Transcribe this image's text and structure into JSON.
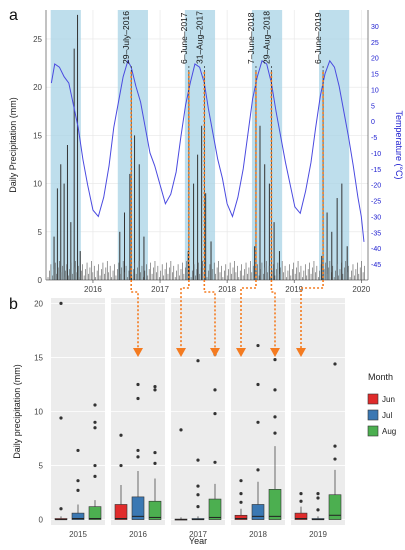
{
  "figure": {
    "panel_a_label": "a",
    "panel_b_label": "b"
  },
  "chart_data": [
    {
      "panel": "a",
      "type": "line",
      "ylabel": "Daily Precipitation (mm)",
      "y2label": "Temperature (°C)",
      "ylim": [
        0,
        28
      ],
      "y2lim": [
        -50,
        35
      ],
      "xlim": [
        2015.3,
        2020.1
      ],
      "y_ticks": [
        0,
        5,
        10,
        15,
        20,
        25
      ],
      "y2_ticks": [
        30,
        25,
        20,
        15,
        10,
        5,
        0,
        -5,
        -10,
        -15,
        -20,
        -25,
        -30,
        -35,
        -40,
        -45
      ],
      "x_ticks": [
        {
          "x": 2016,
          "label": "2016"
        },
        {
          "x": 2017,
          "label": "2017"
        },
        {
          "x": 2018,
          "label": "2018"
        },
        {
          "x": 2019,
          "label": "2019"
        },
        {
          "x": 2020,
          "label": "2020"
        }
      ],
      "summer_bands": [
        [
          2015.37,
          2015.82
        ],
        [
          2016.37,
          2016.82
        ],
        [
          2017.37,
          2017.82
        ],
        [
          2018.37,
          2018.82
        ],
        [
          2019.37,
          2019.82
        ]
      ],
      "annotations": [
        {
          "x": 2016.57,
          "label": "29–July–2016"
        },
        {
          "x": 2017.43,
          "label": "6–June–2017"
        },
        {
          "x": 2017.66,
          "label": "31–Aug–2017"
        },
        {
          "x": 2018.43,
          "label": "7–June–2018"
        },
        {
          "x": 2018.66,
          "label": "29–Aug–2018"
        },
        {
          "x": 2019.43,
          "label": "6–June–2019"
        }
      ],
      "precipitation_spikes": [
        {
          "x": 2015.42,
          "y": 4.5
        },
        {
          "x": 2015.47,
          "y": 9.5
        },
        {
          "x": 2015.52,
          "y": 12.0
        },
        {
          "x": 2015.57,
          "y": 10.0
        },
        {
          "x": 2015.62,
          "y": 14.0
        },
        {
          "x": 2015.67,
          "y": 6.0
        },
        {
          "x": 2015.72,
          "y": 24.0
        },
        {
          "x": 2015.77,
          "y": 27.5
        },
        {
          "x": 2015.81,
          "y": 3.0
        },
        {
          "x": 2016.4,
          "y": 5.0
        },
        {
          "x": 2016.47,
          "y": 7.0
        },
        {
          "x": 2016.55,
          "y": 11.0
        },
        {
          "x": 2016.62,
          "y": 15.0
        },
        {
          "x": 2016.69,
          "y": 12.0
        },
        {
          "x": 2016.76,
          "y": 4.5
        },
        {
          "x": 2017.42,
          "y": 3.0
        },
        {
          "x": 2017.5,
          "y": 10.0
        },
        {
          "x": 2017.56,
          "y": 13.0
        },
        {
          "x": 2017.62,
          "y": 16.0
        },
        {
          "x": 2017.68,
          "y": 9.0
        },
        {
          "x": 2017.76,
          "y": 4.0
        },
        {
          "x": 2018.41,
          "y": 3.5
        },
        {
          "x": 2018.49,
          "y": 16.0
        },
        {
          "x": 2018.56,
          "y": 12.0
        },
        {
          "x": 2018.63,
          "y": 10.0
        },
        {
          "x": 2018.7,
          "y": 6.0
        },
        {
          "x": 2018.78,
          "y": 3.0
        },
        {
          "x": 2019.41,
          "y": 2.5
        },
        {
          "x": 2019.49,
          "y": 7.0
        },
        {
          "x": 2019.56,
          "y": 5.0
        },
        {
          "x": 2019.64,
          "y": 8.5
        },
        {
          "x": 2019.71,
          "y": 10.0
        },
        {
          "x": 2019.79,
          "y": 3.5
        }
      ],
      "temperature_series": [
        {
          "x": 2015.38,
          "y": 12
        },
        {
          "x": 2015.43,
          "y": 18
        },
        {
          "x": 2015.5,
          "y": 17
        },
        {
          "x": 2015.57,
          "y": 14
        },
        {
          "x": 2015.64,
          "y": 12
        },
        {
          "x": 2015.71,
          "y": 5
        },
        {
          "x": 2015.78,
          "y": -2
        },
        {
          "x": 2015.85,
          "y": -12
        },
        {
          "x": 2015.92,
          "y": -20
        },
        {
          "x": 2016.0,
          "y": -28
        },
        {
          "x": 2016.08,
          "y": -30
        },
        {
          "x": 2016.16,
          "y": -24
        },
        {
          "x": 2016.24,
          "y": -14
        },
        {
          "x": 2016.31,
          "y": -2
        },
        {
          "x": 2016.38,
          "y": 6
        },
        {
          "x": 2016.45,
          "y": 14
        },
        {
          "x": 2016.52,
          "y": 19
        },
        {
          "x": 2016.57,
          "y": 17
        },
        {
          "x": 2016.64,
          "y": 11
        },
        {
          "x": 2016.71,
          "y": 6
        },
        {
          "x": 2016.78,
          "y": -2
        },
        {
          "x": 2016.85,
          "y": -10
        },
        {
          "x": 2016.92,
          "y": -14
        },
        {
          "x": 2017.0,
          "y": -20
        },
        {
          "x": 2017.08,
          "y": -26
        },
        {
          "x": 2017.16,
          "y": -23
        },
        {
          "x": 2017.24,
          "y": -16
        },
        {
          "x": 2017.31,
          "y": -5
        },
        {
          "x": 2017.38,
          "y": 5
        },
        {
          "x": 2017.45,
          "y": 12
        },
        {
          "x": 2017.52,
          "y": 18
        },
        {
          "x": 2017.59,
          "y": 17
        },
        {
          "x": 2017.66,
          "y": 12
        },
        {
          "x": 2017.72,
          "y": 4
        },
        {
          "x": 2017.79,
          "y": -4
        },
        {
          "x": 2017.86,
          "y": -12
        },
        {
          "x": 2017.93,
          "y": -18
        },
        {
          "x": 2018.0,
          "y": -26
        },
        {
          "x": 2018.08,
          "y": -30
        },
        {
          "x": 2018.16,
          "y": -24
        },
        {
          "x": 2018.24,
          "y": -15
        },
        {
          "x": 2018.31,
          "y": -4
        },
        {
          "x": 2018.38,
          "y": 7
        },
        {
          "x": 2018.45,
          "y": 14
        },
        {
          "x": 2018.52,
          "y": 19
        },
        {
          "x": 2018.59,
          "y": 18
        },
        {
          "x": 2018.66,
          "y": 12
        },
        {
          "x": 2018.73,
          "y": 3
        },
        {
          "x": 2018.8,
          "y": -5
        },
        {
          "x": 2018.87,
          "y": -13
        },
        {
          "x": 2018.94,
          "y": -20
        },
        {
          "x": 2019.01,
          "y": -27
        },
        {
          "x": 2019.09,
          "y": -29
        },
        {
          "x": 2019.17,
          "y": -22
        },
        {
          "x": 2019.25,
          "y": -13
        },
        {
          "x": 2019.32,
          "y": -2
        },
        {
          "x": 2019.39,
          "y": 8
        },
        {
          "x": 2019.46,
          "y": 15
        },
        {
          "x": 2019.53,
          "y": 19
        },
        {
          "x": 2019.6,
          "y": 17
        },
        {
          "x": 2019.67,
          "y": 11
        },
        {
          "x": 2019.74,
          "y": 3
        },
        {
          "x": 2019.81,
          "y": -5
        },
        {
          "x": 2019.88,
          "y": -14
        },
        {
          "x": 2019.95,
          "y": -24
        },
        {
          "x": 2020.0,
          "y": -30
        },
        {
          "x": 2020.04,
          "y": -38
        }
      ]
    },
    {
      "panel": "b",
      "type": "box",
      "xlabel": "Year",
      "ylabel": "Daily precipitation (mm)",
      "ylim": [
        -0.5,
        20.5
      ],
      "y_ticks": [
        0,
        5,
        10,
        15,
        20
      ],
      "categories": [
        "2015",
        "2016",
        "2017",
        "2018",
        "2019"
      ],
      "legend": {
        "title": "Month",
        "entries": [
          "Jun",
          "Jul",
          "Aug"
        ],
        "colors": [
          "#e02b2b",
          "#3b78b3",
          "#4caf50"
        ]
      },
      "series": [
        {
          "name": "Jun",
          "color": "#e02b2b",
          "boxes": [
            {
              "q1": 0,
              "median": 0,
              "q3": 0.1,
              "whisker_low": 0,
              "whisker_high": 0.3,
              "outliers": [
                1.0,
                9.4,
                20.0
              ]
            },
            {
              "q1": 0,
              "median": 0.1,
              "q3": 1.4,
              "whisker_low": 0,
              "whisker_high": 3.2,
              "outliers": [
                5.0,
                7.8
              ]
            },
            {
              "q1": 0,
              "median": 0,
              "q3": 0.05,
              "whisker_low": 0,
              "whisker_high": 0.2,
              "outliers": [
                8.3
              ]
            },
            {
              "q1": 0,
              "median": 0.1,
              "q3": 0.4,
              "whisker_low": 0,
              "whisker_high": 1.0,
              "outliers": [
                1.6,
                2.4,
                3.6
              ]
            },
            {
              "q1": 0,
              "median": 0.1,
              "q3": 0.6,
              "whisker_low": 0,
              "whisker_high": 1.2,
              "outliers": [
                1.7,
                2.4
              ]
            }
          ]
        },
        {
          "name": "Jul",
          "color": "#3b78b3",
          "boxes": [
            {
              "q1": 0,
              "median": 0.1,
              "q3": 0.6,
              "whisker_low": 0,
              "whisker_high": 1.4,
              "outliers": [
                2.7,
                3.6,
                6.4
              ]
            },
            {
              "q1": 0,
              "median": 0.3,
              "q3": 2.1,
              "whisker_low": 0,
              "whisker_high": 4.5,
              "outliers": [
                5.8,
                6.4,
                11.2,
                12.5
              ]
            },
            {
              "q1": 0,
              "median": 0,
              "q3": 0.1,
              "whisker_low": 0,
              "whisker_high": 0.3,
              "outliers": [
                1.2,
                2.3,
                3.1,
                5.5,
                14.7
              ]
            },
            {
              "q1": 0,
              "median": 0.3,
              "q3": 1.4,
              "whisker_low": 0,
              "whisker_high": 3.5,
              "outliers": [
                4.6,
                9.0,
                12.5,
                16.1
              ]
            },
            {
              "q1": 0,
              "median": 0,
              "q3": 0.1,
              "whisker_low": 0,
              "whisker_high": 0.3,
              "outliers": [
                0.9,
                2.0,
                2.4
              ]
            }
          ]
        },
        {
          "name": "Aug",
          "color": "#4caf50",
          "boxes": [
            {
              "q1": 0,
              "median": 0.1,
              "q3": 1.2,
              "whisker_low": 0,
              "whisker_high": 1.8,
              "outliers": [
                4.0,
                5.0,
                8.5,
                9.0,
                10.6
              ]
            },
            {
              "q1": 0,
              "median": 0.2,
              "q3": 1.7,
              "whisker_low": 0,
              "whisker_high": 3.8,
              "outliers": [
                5.2,
                6.2,
                12.0,
                12.3
              ]
            },
            {
              "q1": 0,
              "median": 0.2,
              "q3": 1.9,
              "whisker_low": 0,
              "whisker_high": 3.3,
              "outliers": [
                5.3,
                9.8,
                12.0,
                15.3,
                15.6
              ]
            },
            {
              "q1": 0,
              "median": 0.3,
              "q3": 2.8,
              "whisker_low": 0,
              "whisker_high": 6.8,
              "outliers": [
                8.0,
                9.5,
                12.0,
                14.8
              ]
            },
            {
              "q1": 0,
              "median": 0.4,
              "q3": 2.3,
              "whisker_low": 0,
              "whisker_high": 4.6,
              "outliers": [
                5.6,
                6.8,
                14.4
              ]
            }
          ]
        }
      ]
    }
  ]
}
